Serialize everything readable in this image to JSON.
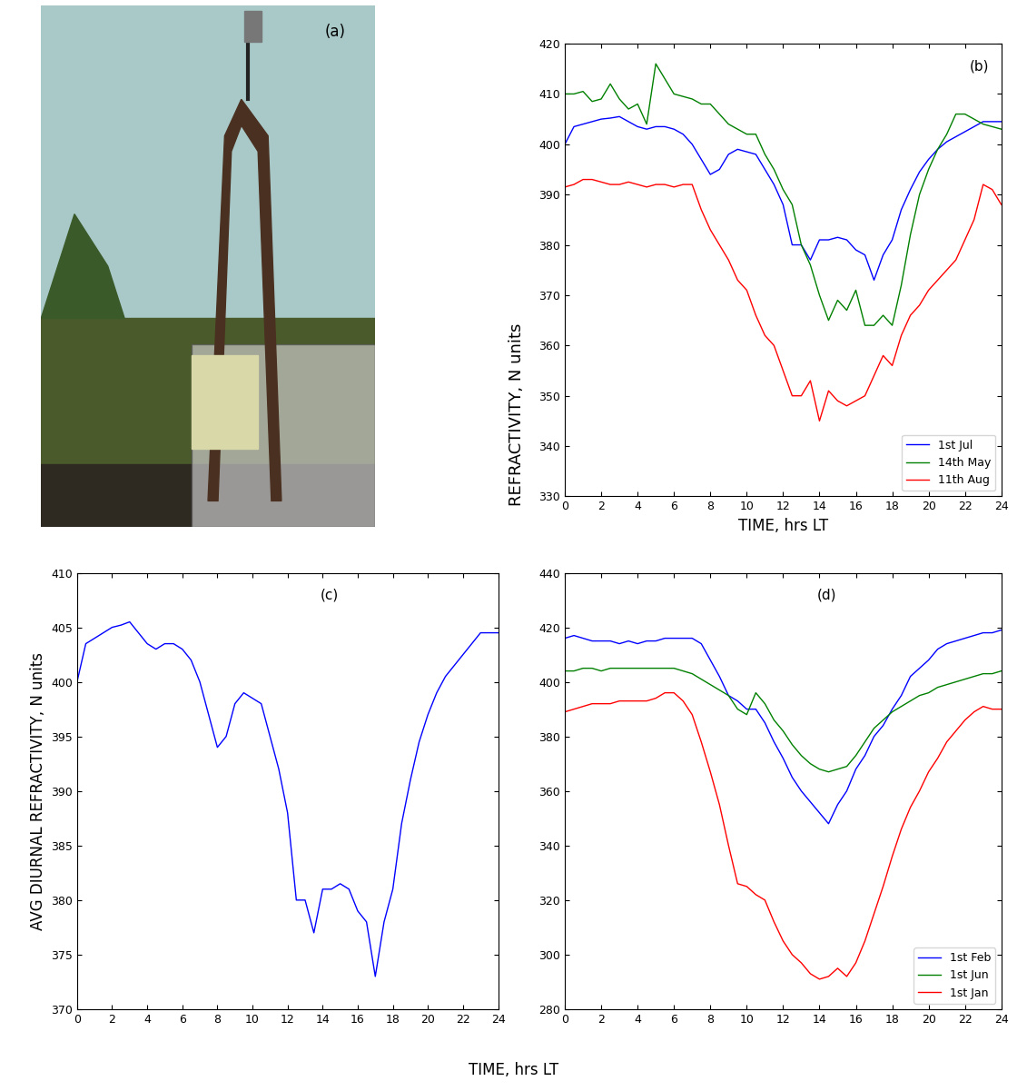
{
  "chart_data": [
    {
      "type": "image",
      "annotations": [
        "(a)"
      ]
    },
    {
      "type": "line",
      "annotations": [
        "(b)"
      ],
      "xlabel": "TIME, hrs LT",
      "x": [
        0,
        0.5,
        1,
        1.5,
        2,
        2.5,
        3,
        3.5,
        4,
        4.5,
        5,
        5.5,
        6,
        6.5,
        7,
        7.5,
        8,
        8.5,
        9,
        9.5,
        10,
        10.5,
        11,
        11.5,
        12,
        12.5,
        13,
        13.5,
        14,
        14.5,
        15,
        15.5,
        16,
        16.5,
        17,
        17.5,
        18,
        18.5,
        19,
        19.5,
        20,
        20.5,
        21,
        21.5,
        22,
        22.5,
        23,
        23.5,
        24
      ],
      "xlim": [
        0,
        24
      ],
      "xticks": [
        0,
        2,
        4,
        6,
        8,
        10,
        12,
        14,
        16,
        18,
        20,
        22,
        24
      ],
      "ylim": [
        330,
        420
      ],
      "yticks": [
        330,
        340,
        350,
        360,
        370,
        380,
        390,
        400,
        410,
        420
      ],
      "legend": "lower right",
      "series": [
        {
          "name": "1st Jul",
          "color": "#0000ff",
          "values": [
            400,
            403.5,
            404,
            404.5,
            405,
            405.2,
            405.5,
            404.5,
            403.5,
            403,
            403.5,
            403.5,
            403,
            402,
            400,
            397,
            394,
            395,
            398,
            399,
            398.5,
            398,
            395,
            392,
            388,
            380,
            380,
            377,
            381,
            381,
            381.5,
            381,
            379,
            378,
            373,
            378,
            381,
            387,
            391,
            394.5,
            397,
            399,
            400.5,
            401.5,
            402.5,
            403.5,
            404.5,
            404.5,
            404.5
          ]
        },
        {
          "name": "14th May",
          "color": "#008000",
          "values": [
            410,
            410,
            410.5,
            408.5,
            409,
            412,
            409,
            407,
            408,
            404,
            416,
            413,
            410,
            409.5,
            409,
            408,
            408,
            406,
            404,
            403,
            402,
            402,
            398,
            395,
            391,
            388,
            380,
            376,
            370,
            365,
            369,
            367,
            371,
            364,
            364,
            366,
            364,
            372,
            382,
            390,
            395,
            399,
            402,
            406,
            406,
            405,
            404,
            403.5,
            403
          ]
        },
        {
          "name": "11th Aug",
          "color": "#ff0000",
          "values": [
            391.5,
            392,
            393,
            393,
            392.5,
            392,
            392,
            392.5,
            392,
            391.5,
            392,
            392,
            391.5,
            392,
            392,
            387,
            383,
            380,
            377,
            373,
            371,
            366,
            362,
            360,
            355,
            350,
            350,
            353,
            345,
            351,
            349,
            348,
            349,
            350,
            354,
            358,
            356,
            362,
            366,
            368,
            371,
            373,
            375,
            377,
            381,
            385,
            392,
            391,
            388
          ]
        }
      ]
    },
    {
      "type": "line",
      "annotations": [
        "(c)"
      ],
      "ylabel": "AVG DIURNAL REFRACTIVITY, N units",
      "x": [
        0,
        0.5,
        1,
        1.5,
        2,
        2.5,
        3,
        3.5,
        4,
        4.5,
        5,
        5.5,
        6,
        6.5,
        7,
        7.5,
        8,
        8.5,
        9,
        9.5,
        10,
        10.5,
        11,
        11.5,
        12,
        12.5,
        13,
        13.5,
        14,
        14.5,
        15,
        15.5,
        16,
        16.5,
        17,
        17.5,
        18,
        18.5,
        19,
        19.5,
        20,
        20.5,
        21,
        21.5,
        22,
        22.5,
        23,
        23.5,
        24
      ],
      "xlim": [
        0,
        24
      ],
      "xticks": [
        0,
        2,
        4,
        6,
        8,
        10,
        12,
        14,
        16,
        18,
        20,
        22,
        24
      ],
      "ylim": [
        370,
        410
      ],
      "yticks": [
        370,
        375,
        380,
        385,
        390,
        395,
        400,
        405,
        410
      ],
      "series": [
        {
          "color": "#0000ff",
          "values": [
            400,
            403.5,
            404,
            404.5,
            405,
            405.2,
            405.5,
            404.5,
            403.5,
            403,
            403.5,
            403.5,
            403,
            402,
            400,
            397,
            394,
            395,
            398,
            399,
            398.5,
            398,
            395,
            392,
            388,
            380,
            380,
            377,
            381,
            381,
            381.5,
            381,
            379,
            378,
            373,
            378,
            381,
            387,
            391,
            394.5,
            397,
            399,
            400.5,
            401.5,
            402.5,
            403.5,
            404.5,
            404.5,
            404.5
          ]
        }
      ]
    },
    {
      "type": "line",
      "annotations": [
        "(d)"
      ],
      "x": [
        0,
        0.5,
        1,
        1.5,
        2,
        2.5,
        3,
        3.5,
        4,
        4.5,
        5,
        5.5,
        6,
        6.5,
        7,
        7.5,
        8,
        8.5,
        9,
        9.5,
        10,
        10.5,
        11,
        11.5,
        12,
        12.5,
        13,
        13.5,
        14,
        14.5,
        15,
        15.5,
        16,
        16.5,
        17,
        17.5,
        18,
        18.5,
        19,
        19.5,
        20,
        20.5,
        21,
        21.5,
        22,
        22.5,
        23,
        23.5,
        24
      ],
      "xlim": [
        0,
        24
      ],
      "xticks": [
        0,
        2,
        4,
        6,
        8,
        10,
        12,
        14,
        16,
        18,
        20,
        22,
        24
      ],
      "ylim": [
        280,
        440
      ],
      "yticks": [
        280,
        300,
        320,
        340,
        360,
        380,
        400,
        420,
        440
      ],
      "legend": "lower right",
      "series": [
        {
          "name": "1st Feb",
          "color": "#0000ff",
          "values": [
            416,
            417,
            416,
            415,
            415,
            415,
            414,
            415,
            414,
            415,
            415,
            416,
            416,
            416,
            416,
            414,
            408,
            402,
            395,
            393,
            390,
            390,
            385,
            378,
            372,
            365,
            360,
            356,
            352,
            348,
            355,
            360,
            368,
            373,
            380,
            384,
            390,
            395,
            402,
            405,
            408,
            412,
            414,
            415,
            416,
            417,
            418,
            418,
            419
          ]
        },
        {
          "name": "1st Jun",
          "color": "#008000",
          "values": [
            404,
            404,
            405,
            405,
            404,
            405,
            405,
            405,
            405,
            405,
            405,
            405,
            405,
            404,
            403,
            401,
            399,
            397,
            395,
            390,
            388,
            396,
            392,
            386,
            382,
            377,
            373,
            370,
            368,
            367,
            368,
            369,
            373,
            378,
            383,
            386,
            389,
            391,
            393,
            395,
            396,
            398,
            399,
            400,
            401,
            402,
            403,
            403,
            404
          ]
        },
        {
          "name": "1st Jan",
          "color": "#ff0000",
          "values": [
            389,
            390,
            391,
            392,
            392,
            392,
            393,
            393,
            393,
            393,
            394,
            396,
            396,
            393,
            388,
            378,
            367,
            355,
            340,
            326,
            325,
            322,
            320,
            312,
            305,
            300,
            297,
            293,
            291,
            292,
            295,
            292,
            297,
            305,
            315,
            325,
            336,
            346,
            354,
            360,
            367,
            372,
            378,
            382,
            386,
            389,
            391,
            390,
            390
          ]
        }
      ]
    }
  ],
  "shared_labels": {
    "ylabel": "REFRACTIVITY, N units",
    "xlabel": "TIME, hrs LT"
  }
}
